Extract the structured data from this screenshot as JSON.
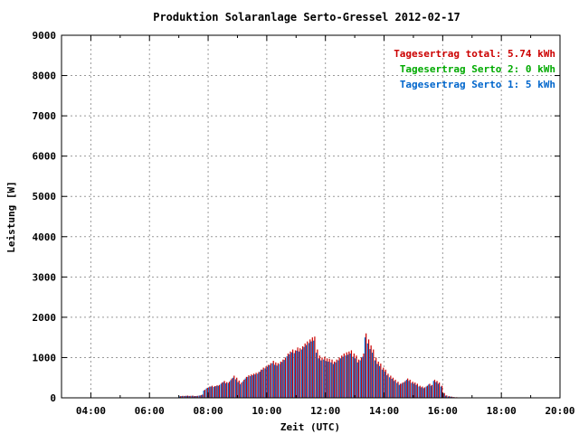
{
  "chart_data": {
    "type": "bar",
    "title": "Produktion Solaranlage Serto-Gressel 2012-02-17",
    "xlabel": "Zeit (UTC)",
    "ylabel": "Leistung [W]",
    "xlim": [
      3.0,
      20.0
    ],
    "ylim": [
      0,
      9000
    ],
    "xticks": [
      4,
      6,
      8,
      10,
      12,
      14,
      16,
      18,
      20
    ],
    "xtick_labels": [
      "04:00",
      "06:00",
      "08:00",
      "10:00",
      "12:00",
      "14:00",
      "16:00",
      "18:00",
      "20:00"
    ],
    "yticks": [
      0,
      1000,
      2000,
      3000,
      4000,
      5000,
      6000,
      7000,
      8000,
      9000
    ],
    "ytick_labels": [
      "0",
      "1000",
      "2000",
      "3000",
      "4000",
      "5000",
      "6000",
      "7000",
      "8000",
      "9000"
    ],
    "grid": true,
    "legend_position": "top-right",
    "legend": [
      {
        "label": "Tagesertrag total: 5.74 kWh",
        "color": "#cc0000"
      },
      {
        "label": "Tagesertrag Serto 2: 0 kWh",
        "color": "#00aa00"
      },
      {
        "label": "Tagesertrag Serto 1: 5 kWh",
        "color": "#0066cc"
      }
    ],
    "bar_interval_hours": 0.0833,
    "series": [
      {
        "name": "Tagesertrag total: 5.74 kWh",
        "color": "#cc0000",
        "x": [
          7.0,
          7.08,
          7.17,
          7.25,
          7.33,
          7.42,
          7.5,
          7.58,
          7.67,
          7.75,
          7.83,
          7.92,
          8.0,
          8.08,
          8.17,
          8.25,
          8.33,
          8.42,
          8.5,
          8.58,
          8.67,
          8.75,
          8.83,
          8.92,
          9.0,
          9.08,
          9.17,
          9.25,
          9.33,
          9.42,
          9.5,
          9.58,
          9.67,
          9.75,
          9.83,
          9.92,
          10.0,
          10.08,
          10.17,
          10.25,
          10.33,
          10.42,
          10.5,
          10.58,
          10.67,
          10.75,
          10.83,
          10.92,
          11.0,
          11.08,
          11.17,
          11.25,
          11.33,
          11.42,
          11.5,
          11.58,
          11.67,
          11.75,
          11.83,
          11.92,
          12.0,
          12.08,
          12.17,
          12.25,
          12.33,
          12.42,
          12.5,
          12.58,
          12.67,
          12.75,
          12.83,
          12.92,
          13.0,
          13.08,
          13.17,
          13.25,
          13.33,
          13.42,
          13.5,
          13.58,
          13.67,
          13.75,
          13.83,
          13.92,
          14.0,
          14.08,
          14.17,
          14.25,
          14.33,
          14.42,
          14.5,
          14.58,
          14.67,
          14.75,
          14.83,
          14.92,
          15.0,
          15.08,
          15.17,
          15.25,
          15.33,
          15.42,
          15.5,
          15.58,
          15.67,
          15.75,
          15.83,
          15.92,
          16.0,
          16.08,
          16.17,
          16.25,
          16.33,
          16.42,
          16.5,
          16.58,
          16.67,
          16.75
        ],
        "values": [
          40,
          50,
          50,
          55,
          50,
          55,
          45,
          50,
          60,
          80,
          200,
          250,
          280,
          300,
          290,
          310,
          320,
          380,
          420,
          390,
          400,
          480,
          550,
          500,
          430,
          380,
          450,
          520,
          560,
          580,
          600,
          620,
          640,
          700,
          750,
          780,
          820,
          860,
          920,
          880,
          860,
          900,
          950,
          1000,
          1100,
          1150,
          1200,
          1180,
          1250,
          1230,
          1280,
          1350,
          1400,
          1450,
          1500,
          1520,
          1200,
          1050,
          1000,
          1020,
          980,
          970,
          950,
          900,
          950,
          1000,
          1050,
          1100,
          1130,
          1150,
          1180,
          1100,
          1050,
          950,
          1000,
          1100,
          1600,
          1450,
          1300,
          1200,
          1000,
          900,
          850,
          750,
          700,
          600,
          550,
          500,
          450,
          400,
          350,
          380,
          420,
          480,
          450,
          400,
          380,
          350,
          300,
          280,
          260,
          300,
          350,
          320,
          450,
          420,
          380,
          300,
          120,
          60,
          40,
          30,
          20,
          15,
          10,
          5,
          5,
          5
        ]
      },
      {
        "name": "Tagesertrag Serto 2: 0 kWh",
        "color": "#00aa00",
        "x": [
          7.0,
          16.75
        ],
        "values": [
          0,
          0
        ]
      },
      {
        "name": "Tagesertrag Serto 1: 5 kWh",
        "color": "#0066cc",
        "x": [
          7.0,
          7.08,
          7.17,
          7.25,
          7.33,
          7.42,
          7.5,
          7.58,
          7.67,
          7.75,
          7.83,
          7.92,
          8.0,
          8.08,
          8.17,
          8.25,
          8.33,
          8.42,
          8.5,
          8.58,
          8.67,
          8.75,
          8.83,
          8.92,
          9.0,
          9.08,
          9.17,
          9.25,
          9.33,
          9.42,
          9.5,
          9.58,
          9.67,
          9.75,
          9.83,
          9.92,
          10.0,
          10.08,
          10.17,
          10.25,
          10.33,
          10.42,
          10.5,
          10.58,
          10.67,
          10.75,
          10.83,
          10.92,
          11.0,
          11.08,
          11.17,
          11.25,
          11.33,
          11.42,
          11.5,
          11.58,
          11.67,
          11.75,
          11.83,
          11.92,
          12.0,
          12.08,
          12.17,
          12.25,
          12.33,
          12.42,
          12.5,
          12.58,
          12.67,
          12.75,
          12.83,
          12.92,
          13.0,
          13.08,
          13.17,
          13.25,
          13.33,
          13.42,
          13.5,
          13.58,
          13.67,
          13.75,
          13.83,
          13.92,
          14.0,
          14.08,
          14.17,
          14.25,
          14.33,
          14.42,
          14.5,
          14.58,
          14.67,
          14.75,
          14.83,
          14.92,
          15.0,
          15.08,
          15.17,
          15.25,
          15.33,
          15.42,
          15.5,
          15.58,
          15.67,
          15.75,
          15.83,
          15.92,
          16.0,
          16.08,
          16.17,
          16.25,
          16.33,
          16.42,
          16.5,
          16.58,
          16.67,
          16.75
        ],
        "values": [
          35,
          45,
          45,
          50,
          45,
          50,
          40,
          45,
          55,
          70,
          180,
          230,
          260,
          280,
          270,
          290,
          300,
          350,
          390,
          360,
          370,
          440,
          500,
          460,
          390,
          340,
          410,
          480,
          520,
          540,
          560,
          580,
          600,
          650,
          700,
          730,
          770,
          810,
          860,
          820,
          800,
          840,
          890,
          940,
          1030,
          1080,
          1130,
          1110,
          1170,
          1150,
          1200,
          1260,
          1310,
          1360,
          1400,
          1420,
          1120,
          980,
          930,
          950,
          910,
          900,
          880,
          840,
          880,
          930,
          980,
          1020,
          1050,
          1070,
          1100,
          1020,
          980,
          880,
          930,
          1020,
          1500,
          1350,
          1210,
          1120,
          930,
          840,
          790,
          700,
          650,
          560,
          510,
          470,
          420,
          370,
          320,
          350,
          390,
          450,
          420,
          370,
          350,
          320,
          280,
          260,
          240,
          280,
          330,
          300,
          420,
          390,
          350,
          280,
          110,
          55,
          35,
          28,
          18,
          12,
          8,
          4,
          4,
          4
        ]
      }
    ]
  }
}
